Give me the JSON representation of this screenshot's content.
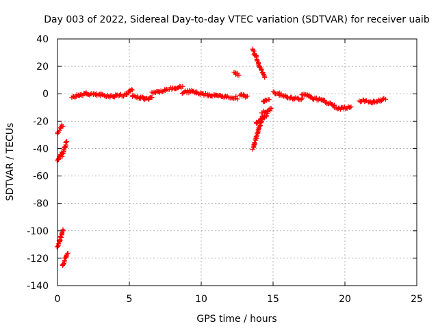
{
  "chart_data": {
    "type": "scatter",
    "title": "Day 003 of 2022, Sidereal Day-to-day VTEC variation (SDTVAR) for receiver uaib",
    "xlabel": "GPS time / hours",
    "ylabel": "SDTVAR / TECUs",
    "xlim": [
      0,
      25
    ],
    "ylim": [
      -140,
      40
    ],
    "xticks": [
      0,
      5,
      10,
      15,
      20,
      25
    ],
    "yticks": [
      -140,
      -120,
      -100,
      -80,
      -60,
      -40,
      -20,
      0,
      20,
      40
    ],
    "xtick_labels": [
      "0",
      "5",
      "10",
      "15",
      "20",
      "25"
    ],
    "ytick_labels": [
      "-140",
      "-120",
      "-100",
      "-80",
      "-60",
      "-40",
      "-20",
      "0",
      "20",
      "40"
    ],
    "grid": true,
    "marker": "+",
    "color": "#ff0000",
    "series": [
      {
        "name": "SDTVAR",
        "segments": [
          {
            "x": [
              0.0,
              0.35
            ],
            "y": [
              -29,
              -23
            ]
          },
          {
            "x": [
              0.0,
              0.3
            ],
            "y": [
              -49,
              -43
            ]
          },
          {
            "x": [
              0.3,
              0.65
            ],
            "y": [
              -46,
              -34
            ]
          },
          {
            "x": [
              0.0,
              0.4
            ],
            "y": [
              -112,
              -100
            ]
          },
          {
            "x": [
              0.35,
              0.7
            ],
            "y": [
              -126,
              -116
            ]
          },
          {
            "x": [
              1.0,
              2.0
            ],
            "y": [
              -2,
              0
            ]
          },
          {
            "x": [
              2.0,
              3.0
            ],
            "y": [
              0,
              -1
            ]
          },
          {
            "x": [
              3.0,
              4.0
            ],
            "y": [
              -1,
              -2
            ]
          },
          {
            "x": [
              4.0,
              4.8
            ],
            "y": [
              -1,
              -1
            ]
          },
          {
            "x": [
              4.8,
              5.2
            ],
            "y": [
              0,
              3
            ]
          },
          {
            "x": [
              5.2,
              6.0
            ],
            "y": [
              -2,
              -3
            ]
          },
          {
            "x": [
              6.0,
              6.6
            ],
            "y": [
              -4,
              -3
            ]
          },
          {
            "x": [
              6.6,
              7.5
            ],
            "y": [
              1,
              2
            ]
          },
          {
            "x": [
              7.5,
              8.7
            ],
            "y": [
              3,
              5
            ]
          },
          {
            "x": [
              8.7,
              9.5
            ],
            "y": [
              1,
              2
            ]
          },
          {
            "x": [
              9.5,
              10.5
            ],
            "y": [
              1,
              -1
            ]
          },
          {
            "x": [
              10.5,
              11.5
            ],
            "y": [
              -1,
              -2
            ]
          },
          {
            "x": [
              11.5,
              12.5
            ],
            "y": [
              -2,
              -3
            ]
          },
          {
            "x": [
              12.3,
              12.6
            ],
            "y": [
              15,
              14
            ]
          },
          {
            "x": [
              12.7,
              13.2
            ],
            "y": [
              -1,
              -2
            ]
          },
          {
            "x": [
              13.6,
              14.4
            ],
            "y": [
              32,
              12
            ]
          },
          {
            "x": [
              13.6,
              14.3
            ],
            "y": [
              -40,
              -16
            ]
          },
          {
            "x": [
              13.8,
              14.6
            ],
            "y": [
              -22,
              -15
            ]
          },
          {
            "x": [
              14.2,
              14.9
            ],
            "y": [
              -14,
              -11
            ]
          },
          {
            "x": [
              14.3,
              14.7
            ],
            "y": [
              -5,
              -5
            ]
          },
          {
            "x": [
              15.0,
              16.0
            ],
            "y": [
              1,
              -2
            ]
          },
          {
            "x": [
              16.0,
              17.0
            ],
            "y": [
              -3,
              -4
            ]
          },
          {
            "x": [
              17.0,
              17.6
            ],
            "y": [
              0,
              -2
            ]
          },
          {
            "x": [
              17.6,
              18.5
            ],
            "y": [
              -3,
              -5
            ]
          },
          {
            "x": [
              18.5,
              19.3
            ],
            "y": [
              -5,
              -9
            ]
          },
          {
            "x": [
              19.3,
              20.4
            ],
            "y": [
              -11,
              -10
            ]
          },
          {
            "x": [
              21.0,
              22.0
            ],
            "y": [
              -5,
              -6
            ]
          },
          {
            "x": [
              22.0,
              22.8
            ],
            "y": [
              -6,
              -4
            ]
          }
        ]
      }
    ]
  }
}
